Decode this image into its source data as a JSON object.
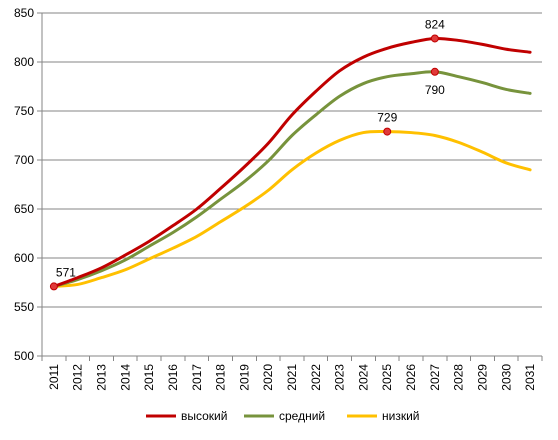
{
  "chart_data": {
    "type": "line",
    "title": "",
    "xlabel": "",
    "ylabel": "",
    "x": [
      "2011",
      "2012",
      "2013",
      "2014",
      "2015",
      "2016",
      "2017",
      "2018",
      "2019",
      "2020",
      "2021",
      "2022",
      "2023",
      "2024",
      "2025",
      "2026",
      "2027",
      "2028",
      "2029",
      "2030",
      "2031"
    ],
    "ylim": [
      500,
      850
    ],
    "yticks": [
      500,
      550,
      600,
      650,
      700,
      750,
      800,
      850
    ],
    "grid": "horizontal",
    "legend": "bottom",
    "series": [
      {
        "name": "высокий",
        "color": "#C00000",
        "values": [
          571,
          580,
          590,
          603,
          617,
          633,
          650,
          671,
          693,
          717,
          746,
          770,
          791,
          805,
          814,
          820,
          824,
          822,
          818,
          813,
          810
        ]
      },
      {
        "name": "средний",
        "color": "#77933C",
        "values": [
          571,
          578,
          587,
          598,
          612,
          626,
          642,
          660,
          678,
          699,
          725,
          746,
          765,
          778,
          785,
          788,
          790,
          785,
          779,
          772,
          768
        ]
      },
      {
        "name": "низкий",
        "color": "#FFC000",
        "values": [
          571,
          573,
          580,
          588,
          599,
          610,
          622,
          637,
          652,
          669,
          690,
          707,
          720,
          728,
          729,
          728,
          725,
          718,
          708,
          697,
          690
        ]
      }
    ],
    "annotations": [
      {
        "series": "высокий",
        "x": "2011",
        "value": 571,
        "text": "571",
        "position": "above"
      },
      {
        "series": "высокий",
        "x": "2027",
        "value": 824,
        "text": "824",
        "position": "above"
      },
      {
        "series": "средний",
        "x": "2027",
        "value": 790,
        "text": "790",
        "position": "below"
      },
      {
        "series": "низкий",
        "x": "2025",
        "value": 729,
        "text": "729",
        "position": "above"
      }
    ]
  }
}
